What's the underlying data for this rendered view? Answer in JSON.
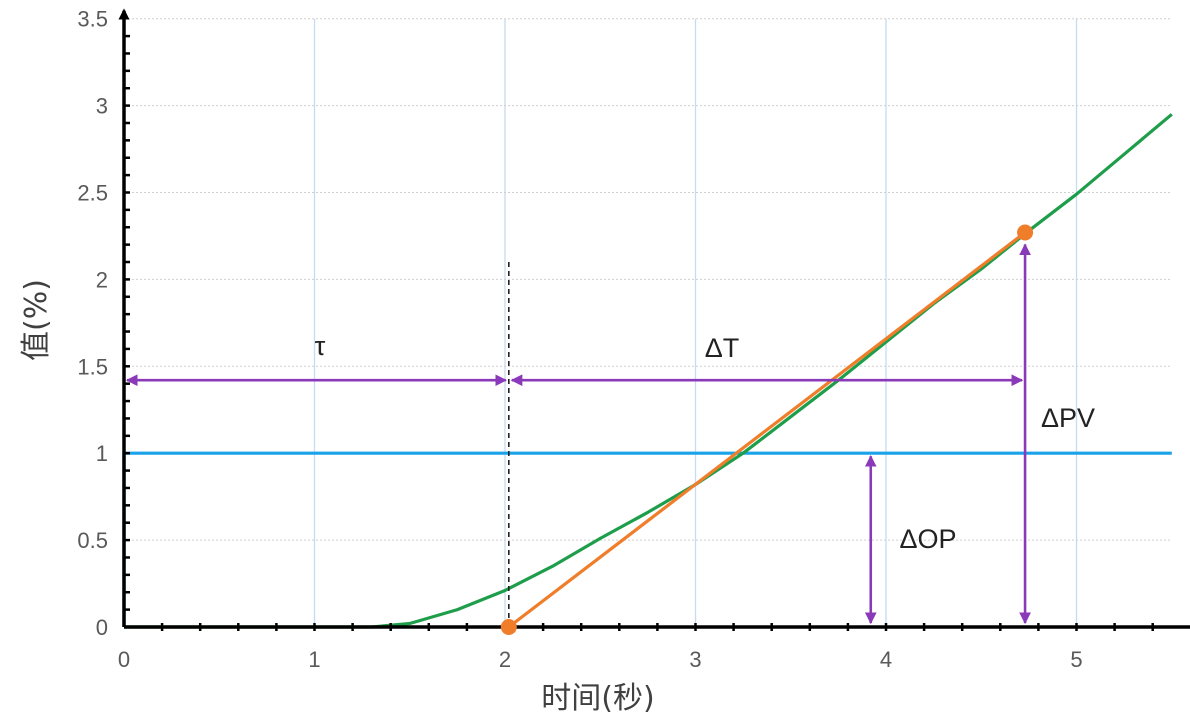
{
  "chart_data": {
    "type": "line",
    "xlabel": "时间(秒)",
    "ylabel": "值(%)",
    "xlim": [
      0,
      5.5
    ],
    "ylim": [
      0,
      3.5
    ],
    "x_ticks": [
      "0",
      "1",
      "2",
      "3",
      "4",
      "5"
    ],
    "y_ticks": [
      "0",
      "0.5",
      "1",
      "1.5",
      "2",
      "2.5",
      "3",
      "3.5"
    ],
    "grid": true,
    "series": [
      {
        "color": "#1aa3e8",
        "points": [
          [
            0,
            0
          ],
          [
            0,
            1
          ],
          [
            5.5,
            1
          ]
        ]
      },
      {
        "color": "#1e9e4a",
        "points": [
          [
            0,
            0
          ],
          [
            1.3,
            0
          ],
          [
            1.5,
            0.02
          ],
          [
            1.75,
            0.1
          ],
          [
            2.0,
            0.21
          ],
          [
            2.25,
            0.35
          ],
          [
            2.5,
            0.51
          ],
          [
            2.75,
            0.66
          ],
          [
            3.0,
            0.82
          ],
          [
            3.25,
            1.0
          ],
          [
            3.5,
            1.21
          ],
          [
            3.75,
            1.42
          ],
          [
            4.0,
            1.64
          ],
          [
            4.25,
            1.86
          ],
          [
            4.5,
            2.06
          ],
          [
            4.75,
            2.28
          ],
          [
            5.0,
            2.49
          ],
          [
            5.25,
            2.72
          ],
          [
            5.5,
            2.95
          ]
        ]
      },
      {
        "color": "#f07d2a",
        "points": [
          [
            2.02,
            0
          ],
          [
            4.73,
            2.27
          ]
        ]
      }
    ],
    "annotations": {
      "tau": {
        "label": "τ",
        "x_start": 0,
        "x_end": 2.02,
        "y": 1.42
      },
      "dead_time_marker": {
        "x": 2.02,
        "y_top": 2.1
      },
      "delta_t": {
        "label": "ΔT",
        "x_start": 2.02,
        "x_end": 4.73,
        "y": 1.42
      },
      "delta_op": {
        "label": "ΔOP",
        "x": 3.92,
        "y_start": 0,
        "y_end": 1.0
      },
      "delta_pv": {
        "label": "ΔPV",
        "x": 4.73,
        "y_start": 0,
        "y_end": 2.27
      },
      "tangent_points": [
        [
          2.02,
          0
        ],
        [
          4.73,
          2.27
        ]
      ]
    },
    "colors": {
      "annotation": "#8a3ab9",
      "grid_vertical": "#c5dcf2",
      "grid_horizontal": "#cfcfcf",
      "axis": "#000000"
    }
  }
}
